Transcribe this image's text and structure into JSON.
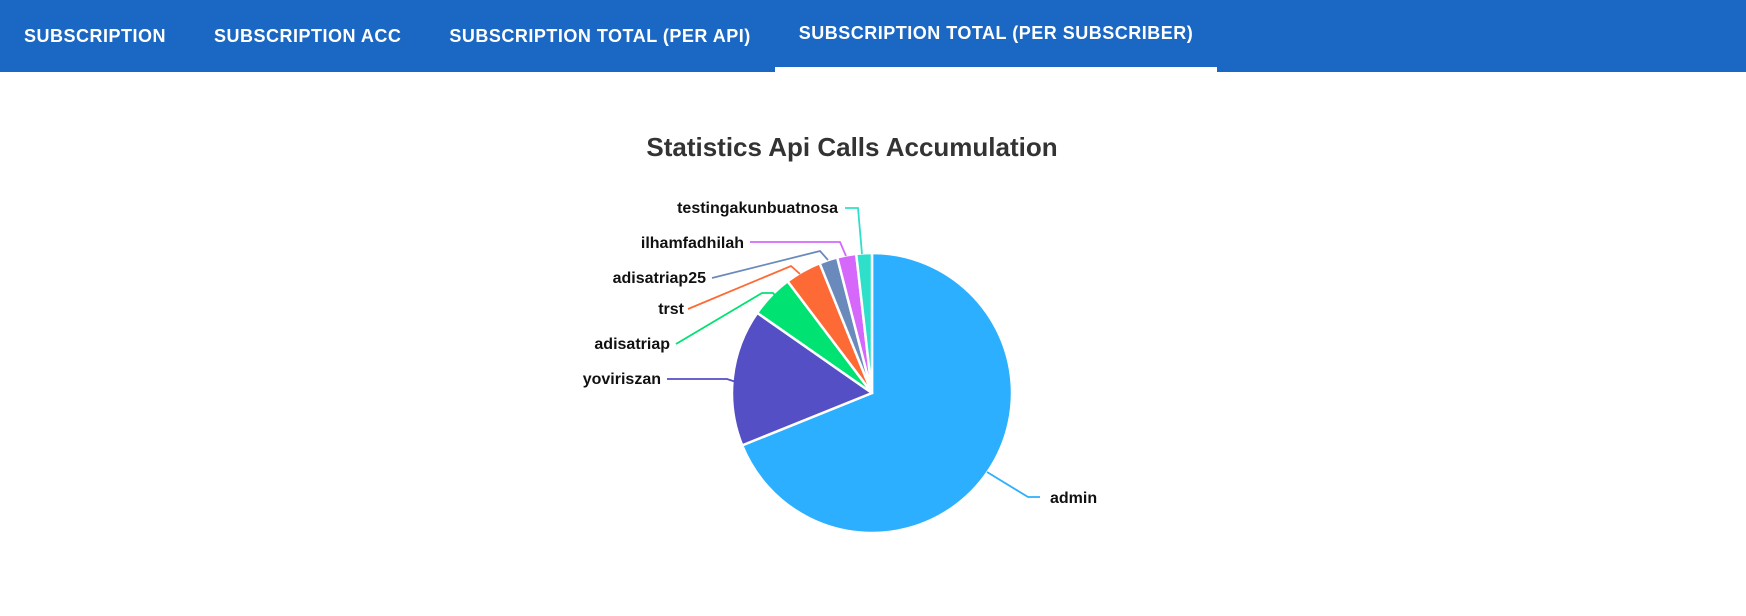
{
  "navbar": {
    "background": "#1b67c4",
    "text_color": "#ffffff",
    "active_indicator_color": "#ffffff",
    "tabs": [
      {
        "label": "SUBSCRIPTION",
        "active": false
      },
      {
        "label": "SUBSCRIPTION ACC",
        "active": false
      },
      {
        "label": "SUBSCRIPTION TOTAL (PER API)",
        "active": false
      },
      {
        "label": "SUBSCRIPTION TOTAL (PER SUBSCRIBER)",
        "active": true
      }
    ]
  },
  "chart_data": {
    "type": "pie",
    "title": "Statistics Api Calls Accumulation",
    "legend_position": "none",
    "labels_display": "callout-connectors",
    "start_angle_deg": 0,
    "direction": "clockwise",
    "categories": [
      "admin",
      "yoviriszan",
      "adisatriap",
      "trst",
      "adisatriap25",
      "ilhamfadhilah",
      "testingakunbuatnosa"
    ],
    "values_percent": [
      68.9,
      15.8,
      5.0,
      4.2,
      2.1,
      2.2,
      1.8
    ],
    "colors": [
      "#2caffe",
      "#544fc5",
      "#00e272",
      "#fe6a35",
      "#6b8abc",
      "#d568fb",
      "#2ee0ca"
    ]
  }
}
